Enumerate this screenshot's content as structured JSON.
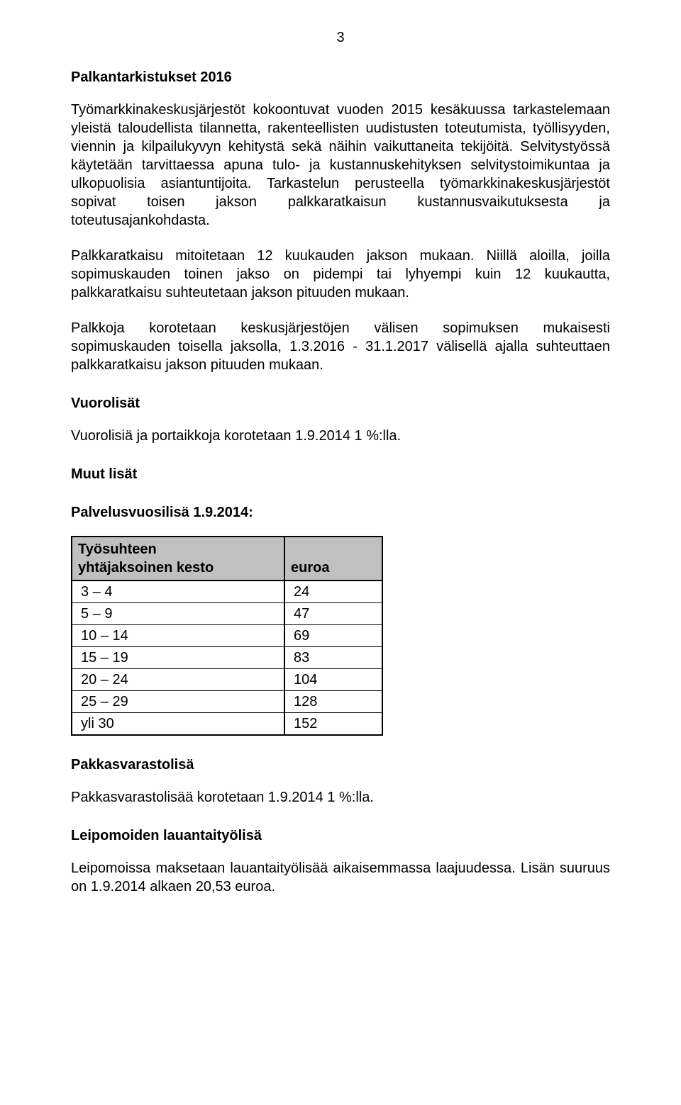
{
  "page_number": "3",
  "heading1": "Palkantarkistukset 2016",
  "para1": "Työmarkkinakeskusjärjestöt kokoontuvat vuoden 2015 kesäkuussa tarkastelemaan yleistä taloudellista tilannetta, rakenteellisten uudistusten toteutumista, työllisyyden, viennin ja kilpailukyvyn kehitystä sekä näihin vaikuttaneita tekijöitä. Selvitystyössä käytetään tarvittaessa apuna tulo- ja kustannuskehityksen selvitystoimikuntaa ja ulkopuolisia asiantuntijoita. Tarkastelun perusteella työmarkkinakeskusjärjestöt sopivat toisen jakson palkkaratkaisun kustannusvaikutuksesta ja toteutusajankohdasta.",
  "para2": "Palkkaratkaisu mitoitetaan 12 kuukauden jakson mukaan. Niillä aloilla, joilla sopimuskauden toinen jakso on pidempi tai lyhyempi kuin 12 kuukautta, palkkaratkaisu suhteutetaan jakson pituuden mukaan.",
  "para3": "Palkkoja korotetaan keskusjärjestöjen välisen sopimuksen mukaisesti sopimuskauden toisella jaksolla, 1.3.2016 - 31.1.2017 välisellä ajalla suhteuttaen palkkaratkaisu jakson pituuden mukaan.",
  "heading2": "Vuorolisät",
  "para4": "Vuorolisiä ja portaikkoja korotetaan 1.9.2014 1 %:lla.",
  "heading3": "Muut lisät",
  "heading4": "Palvelusvuosilisä 1.9.2014:",
  "table": {
    "col1_line1": "Työsuhteen",
    "col1_line2": "yhtäjaksoinen kesto",
    "col2": "euroa",
    "rows": [
      {
        "a": " 3 – 4",
        "b": "24"
      },
      {
        "a": " 5 – 9",
        "b": "47"
      },
      {
        "a": "10 – 14",
        "b": "69"
      },
      {
        "a": "15 – 19",
        "b": "83"
      },
      {
        "a": "20 – 24",
        "b": "104"
      },
      {
        "a": "25 – 29",
        "b": "128"
      },
      {
        "a": "yli 30",
        "b": "152"
      }
    ]
  },
  "heading5": "Pakkasvarastolisä",
  "para5": "Pakkasvarastolisää korotetaan 1.9.2014 1 %:lla.",
  "heading6": "Leipomoiden lauantaityölisä",
  "para6": "Leipomoissa maksetaan lauantaityölisää aikaisemmassa laajuudessa. Lisän suuruus on 1.9.2014 alkaen 20,53 euroa."
}
